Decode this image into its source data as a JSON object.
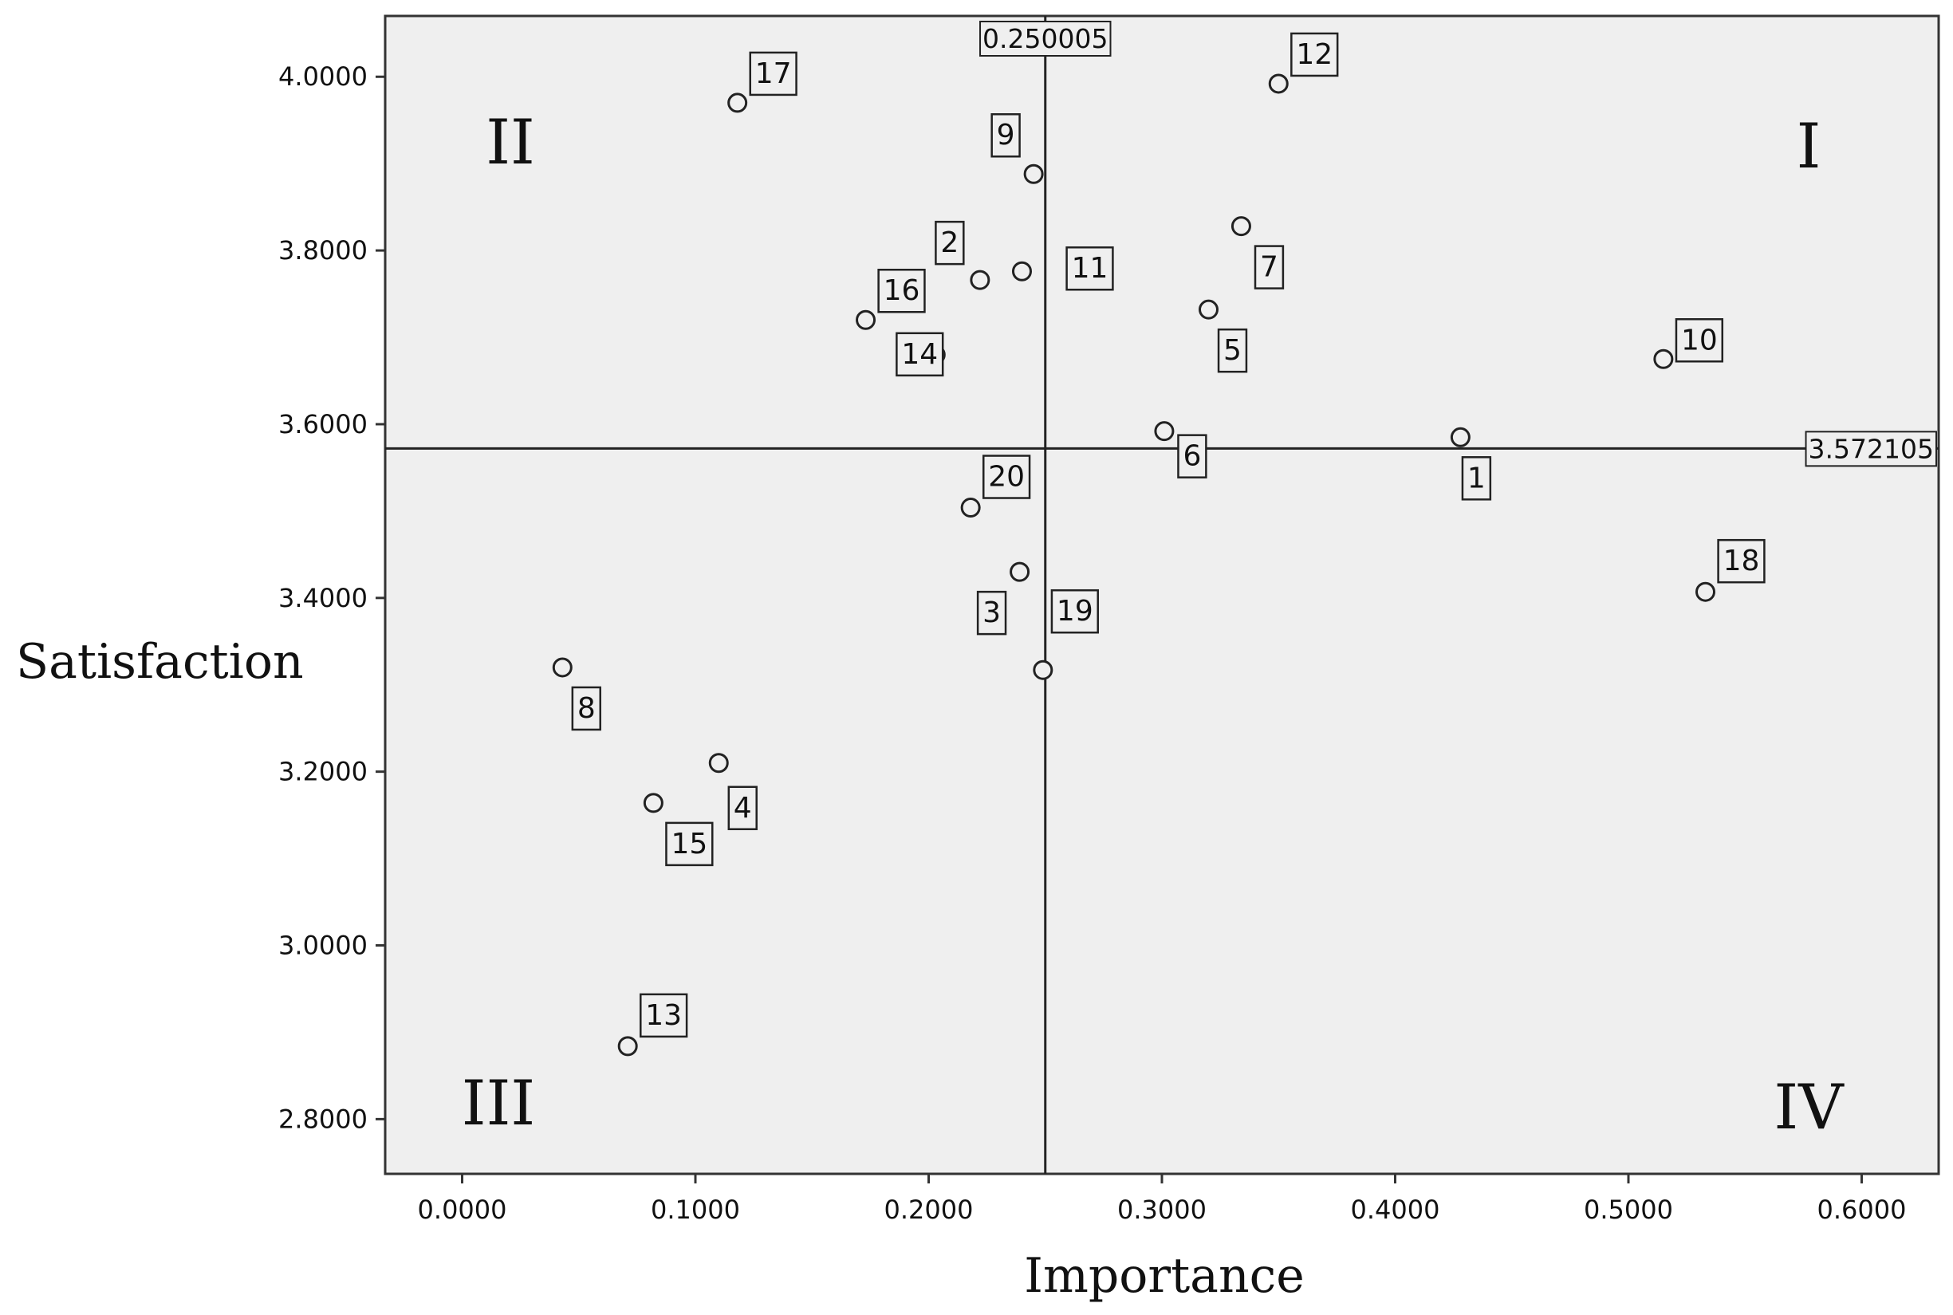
{
  "chart_data": {
    "type": "scatter",
    "xlabel": "Importance",
    "ylabel": "Satisfaction",
    "xlim": [
      -0.033,
      0.633
    ],
    "ylim": [
      2.737,
      4.07
    ],
    "x_ticks": [
      "0.0000",
      "0.1000",
      "0.2000",
      "0.3000",
      "0.4000",
      "0.5000",
      "0.6000"
    ],
    "y_ticks": [
      "2.8000",
      "3.0000",
      "3.2000",
      "3.4000",
      "3.6000",
      "3.8000",
      "4.0000"
    ],
    "grid": false,
    "plot_background": "#efefef",
    "reference_lines": {
      "x": {
        "value": 0.250005,
        "label": "0.250005"
      },
      "y": {
        "value": 3.572105,
        "label": "3.572105"
      }
    },
    "quadrants": {
      "I": "I",
      "II": "II",
      "III": "III",
      "IV": "IV"
    },
    "points": [
      {
        "label": "1",
        "x": 0.428,
        "y": 3.585
      },
      {
        "label": "2",
        "x": 0.222,
        "y": 3.766
      },
      {
        "label": "3",
        "x": 0.239,
        "y": 3.43
      },
      {
        "label": "4",
        "x": 0.11,
        "y": 3.21
      },
      {
        "label": "5",
        "x": 0.32,
        "y": 3.732
      },
      {
        "label": "6",
        "x": 0.301,
        "y": 3.592
      },
      {
        "label": "7",
        "x": 0.334,
        "y": 3.828
      },
      {
        "label": "8",
        "x": 0.043,
        "y": 3.32
      },
      {
        "label": "9",
        "x": 0.245,
        "y": 3.888
      },
      {
        "label": "10",
        "x": 0.515,
        "y": 3.675
      },
      {
        "label": "11",
        "x": 0.24,
        "y": 3.776
      },
      {
        "label": "12",
        "x": 0.35,
        "y": 3.992
      },
      {
        "label": "13",
        "x": 0.071,
        "y": 2.884
      },
      {
        "label": "14",
        "x": 0.203,
        "y": 3.68
      },
      {
        "label": "15",
        "x": 0.082,
        "y": 3.164
      },
      {
        "label": "16",
        "x": 0.173,
        "y": 3.72
      },
      {
        "label": "17",
        "x": 0.118,
        "y": 3.97
      },
      {
        "label": "18",
        "x": 0.533,
        "y": 3.407
      },
      {
        "label": "19",
        "x": 0.249,
        "y": 3.317
      },
      {
        "label": "20",
        "x": 0.218,
        "y": 3.504
      }
    ]
  }
}
